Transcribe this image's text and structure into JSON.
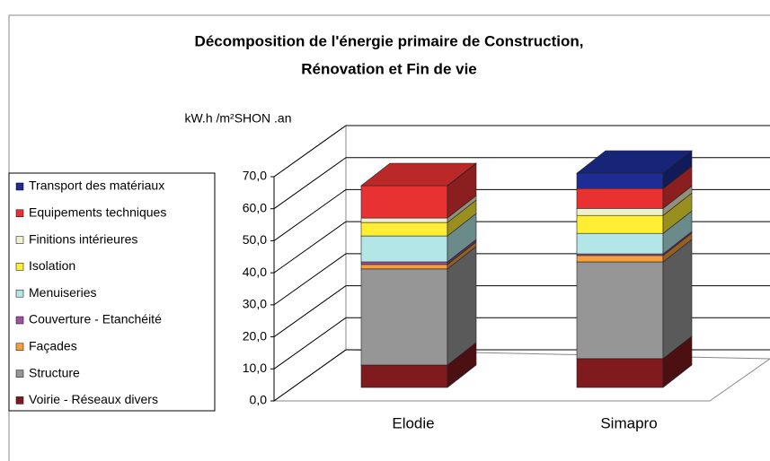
{
  "chart_data": {
    "type": "bar3d_stacked",
    "title": "Décomposition de l'énergie primaire de Construction,",
    "subtitle": "Rénovation et Fin de vie",
    "y_label": "kW.h /m²SHON .an",
    "categories": [
      "Elodie",
      "Simapro"
    ],
    "series": [
      {
        "name": "Voirie - Réseaux divers",
        "color": "#7f1a1f",
        "values": [
          7.0,
          9.0
        ]
      },
      {
        "name": "Structure",
        "color": "#969696",
        "values": [
          30.0,
          30.2
        ]
      },
      {
        "name": "Façades",
        "color": "#f5a03c",
        "values": [
          1.4,
          2.0
        ]
      },
      {
        "name": "Couverture - Etanchéité",
        "color": "#a050a0",
        "values": [
          0.8,
          0.5
        ]
      },
      {
        "name": "Menuiseries",
        "color": "#b3e6e6",
        "values": [
          8.1,
          6.4
        ]
      },
      {
        "name": "Isolation",
        "color": "#ffee33",
        "values": [
          4.2,
          5.6
        ]
      },
      {
        "name": "Finitions intérieures",
        "color": "#f0f0d0",
        "values": [
          1.4,
          2.2
        ]
      },
      {
        "name": "Equipements techniques",
        "color": "#e83232",
        "values": [
          10.1,
          6.2
        ]
      },
      {
        "name": "Transport des matériaux",
        "color": "#1e2d96",
        "values": [
          0,
          4.8
        ]
      }
    ],
    "ylim": [
      0,
      70
    ],
    "yticks": [
      {
        "value": 0,
        "label": "0,0"
      },
      {
        "value": 10,
        "label": "10,0"
      },
      {
        "value": 20,
        "label": "20,0"
      },
      {
        "value": 30,
        "label": "30,0"
      },
      {
        "value": 40,
        "label": "40,0"
      },
      {
        "value": 50,
        "label": "50,0"
      },
      {
        "value": 60,
        "label": "60,0"
      },
      {
        "value": 70,
        "label": "70,0"
      }
    ],
    "grid": true,
    "legend": "left"
  }
}
